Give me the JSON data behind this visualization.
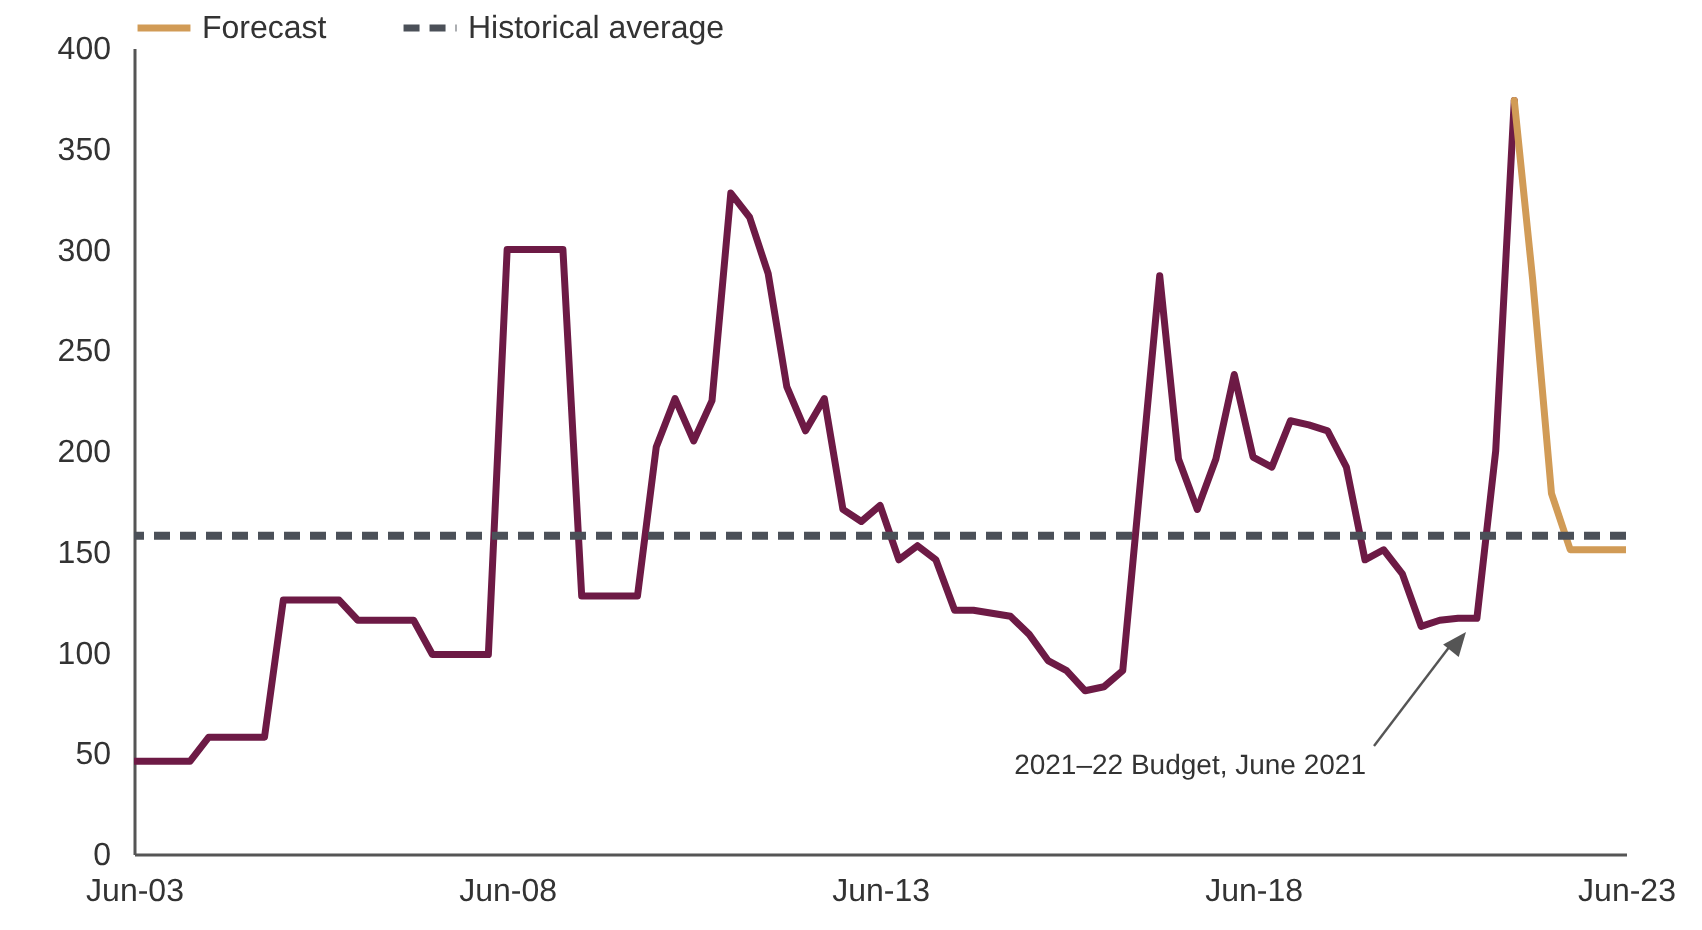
{
  "chart_data": {
    "type": "line",
    "xlim": [
      "2003-06",
      "2023-06"
    ],
    "xticks": [
      {
        "value": "2003-06",
        "label": "Jun-03"
      },
      {
        "value": "2008-06",
        "label": "Jun-08"
      },
      {
        "value": "2013-06",
        "label": "Jun-13"
      },
      {
        "value": "2018-06",
        "label": "Jun-18"
      },
      {
        "value": "2023-06",
        "label": "Jun-23"
      }
    ],
    "ylim": [
      0,
      400
    ],
    "yticks": [
      0,
      50,
      100,
      150,
      200,
      250,
      300,
      350,
      400
    ],
    "series": [
      {
        "color": "#6d1a45",
        "x": [
          "2003-06",
          "2004-03",
          "2004-06",
          "2005-03",
          "2005-06",
          "2006-03",
          "2006-06",
          "2007-03",
          "2007-06",
          "2008-03",
          "2008-06",
          "2009-03",
          "2009-06",
          "2010-03",
          "2010-06",
          "2010-09",
          "2010-12",
          "2011-03",
          "2011-06",
          "2011-09",
          "2011-12",
          "2012-03",
          "2012-06",
          "2012-09",
          "2012-12",
          "2013-03",
          "2013-06",
          "2013-09",
          "2013-12",
          "2014-03",
          "2014-06",
          "2014-09",
          "2015-03",
          "2015-06",
          "2015-09",
          "2015-12",
          "2016-03",
          "2016-06",
          "2016-09",
          "2017-03",
          "2017-06",
          "2017-09",
          "2017-12",
          "2018-03",
          "2018-06",
          "2018-09",
          "2018-12",
          "2019-03",
          "2019-06",
          "2019-09",
          "2019-12",
          "2020-03",
          "2020-06",
          "2020-09",
          "2020-12",
          "2021-03",
          "2021-06",
          "2021-09",
          "2021-12"
        ],
        "values": [
          46,
          46,
          58,
          58,
          126,
          126,
          116,
          116,
          99,
          99,
          300,
          300,
          128,
          128,
          202,
          226,
          205,
          225,
          328,
          316,
          288,
          232,
          210,
          226,
          171,
          165,
          173,
          146,
          153,
          146,
          121,
          121,
          118,
          109,
          96,
          91,
          81,
          83,
          91,
          287,
          196,
          171,
          196,
          238,
          197,
          192,
          215,
          213,
          210,
          192,
          146,
          151,
          139,
          113,
          116,
          117,
          117,
          200,
          374
        ]
      },
      {
        "name": "Forecast",
        "color": "#d19b56",
        "x": [
          "2021-12",
          "2022-03",
          "2022-06",
          "2022-09",
          "2023-06"
        ],
        "values": [
          374,
          285,
          179,
          151,
          151
        ]
      }
    ],
    "ref_lines": [
      {
        "axis": "y",
        "value": 158,
        "label": "Historical average",
        "color": "#4b5058",
        "line_style": "dashed"
      }
    ],
    "annotations": [
      "2021–22 Budget, June 2021"
    ],
    "legend": "top"
  }
}
